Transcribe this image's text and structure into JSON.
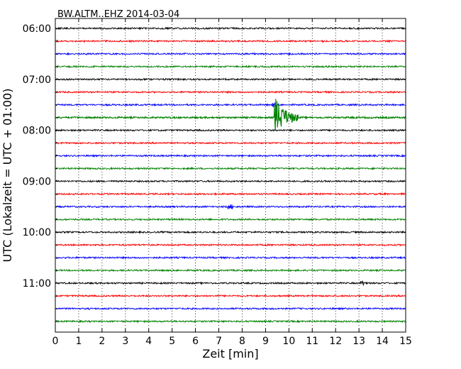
{
  "chart_data": {
    "type": "line",
    "title": "BW.ALTM..EHZ 2014-03-04",
    "xlabel": "Zeit  [min]",
    "ylabel": "UTC (Lokalzeit = UTC + 01:00)",
    "xlim": [
      0,
      15
    ],
    "x_ticks": [
      "0",
      "1",
      "2",
      "3",
      "4",
      "5",
      "6",
      "7",
      "8",
      "9",
      "10",
      "11",
      "12",
      "13",
      "14",
      "15"
    ],
    "y_tick_labels": [
      "06:00",
      "07:00",
      "08:00",
      "09:00",
      "10:00",
      "11:00"
    ],
    "grid": true,
    "trace_colors": [
      "#000000",
      "#ff0000",
      "#0000ff",
      "#008000"
    ],
    "traces": [
      {
        "start": "06:00",
        "color": "#000000"
      },
      {
        "start": "06:15",
        "color": "#ff0000"
      },
      {
        "start": "06:30",
        "color": "#0000ff"
      },
      {
        "start": "06:45",
        "color": "#008000"
      },
      {
        "start": "07:00",
        "color": "#000000"
      },
      {
        "start": "07:15",
        "color": "#ff0000"
      },
      {
        "start": "07:30",
        "color": "#0000ff"
      },
      {
        "start": "07:45",
        "color": "#008000"
      },
      {
        "start": "08:00",
        "color": "#000000"
      },
      {
        "start": "08:15",
        "color": "#ff0000"
      },
      {
        "start": "08:30",
        "color": "#0000ff"
      },
      {
        "start": "08:45",
        "color": "#008000"
      },
      {
        "start": "09:00",
        "color": "#000000"
      },
      {
        "start": "09:15",
        "color": "#ff0000"
      },
      {
        "start": "09:30",
        "color": "#0000ff"
      },
      {
        "start": "09:45",
        "color": "#008000"
      },
      {
        "start": "10:00",
        "color": "#000000"
      },
      {
        "start": "10:15",
        "color": "#ff0000"
      },
      {
        "start": "10:30",
        "color": "#0000ff"
      },
      {
        "start": "10:45",
        "color": "#008000"
      },
      {
        "start": "11:00",
        "color": "#000000"
      },
      {
        "start": "11:15",
        "color": "#ff0000"
      },
      {
        "start": "11:30",
        "color": "#0000ff"
      },
      {
        "start": "11:45",
        "color": "#008000"
      }
    ],
    "events": [
      {
        "trace_start": "07:30",
        "minute": 9.4,
        "description": "small spike"
      },
      {
        "trace_start": "07:45",
        "minute": 9.4,
        "description": "large earthquake signal"
      },
      {
        "trace_start": "09:30",
        "minute": 7.5,
        "description": "small burst"
      },
      {
        "trace_start": "11:00",
        "minute": 13.2,
        "description": "small spike"
      }
    ]
  }
}
